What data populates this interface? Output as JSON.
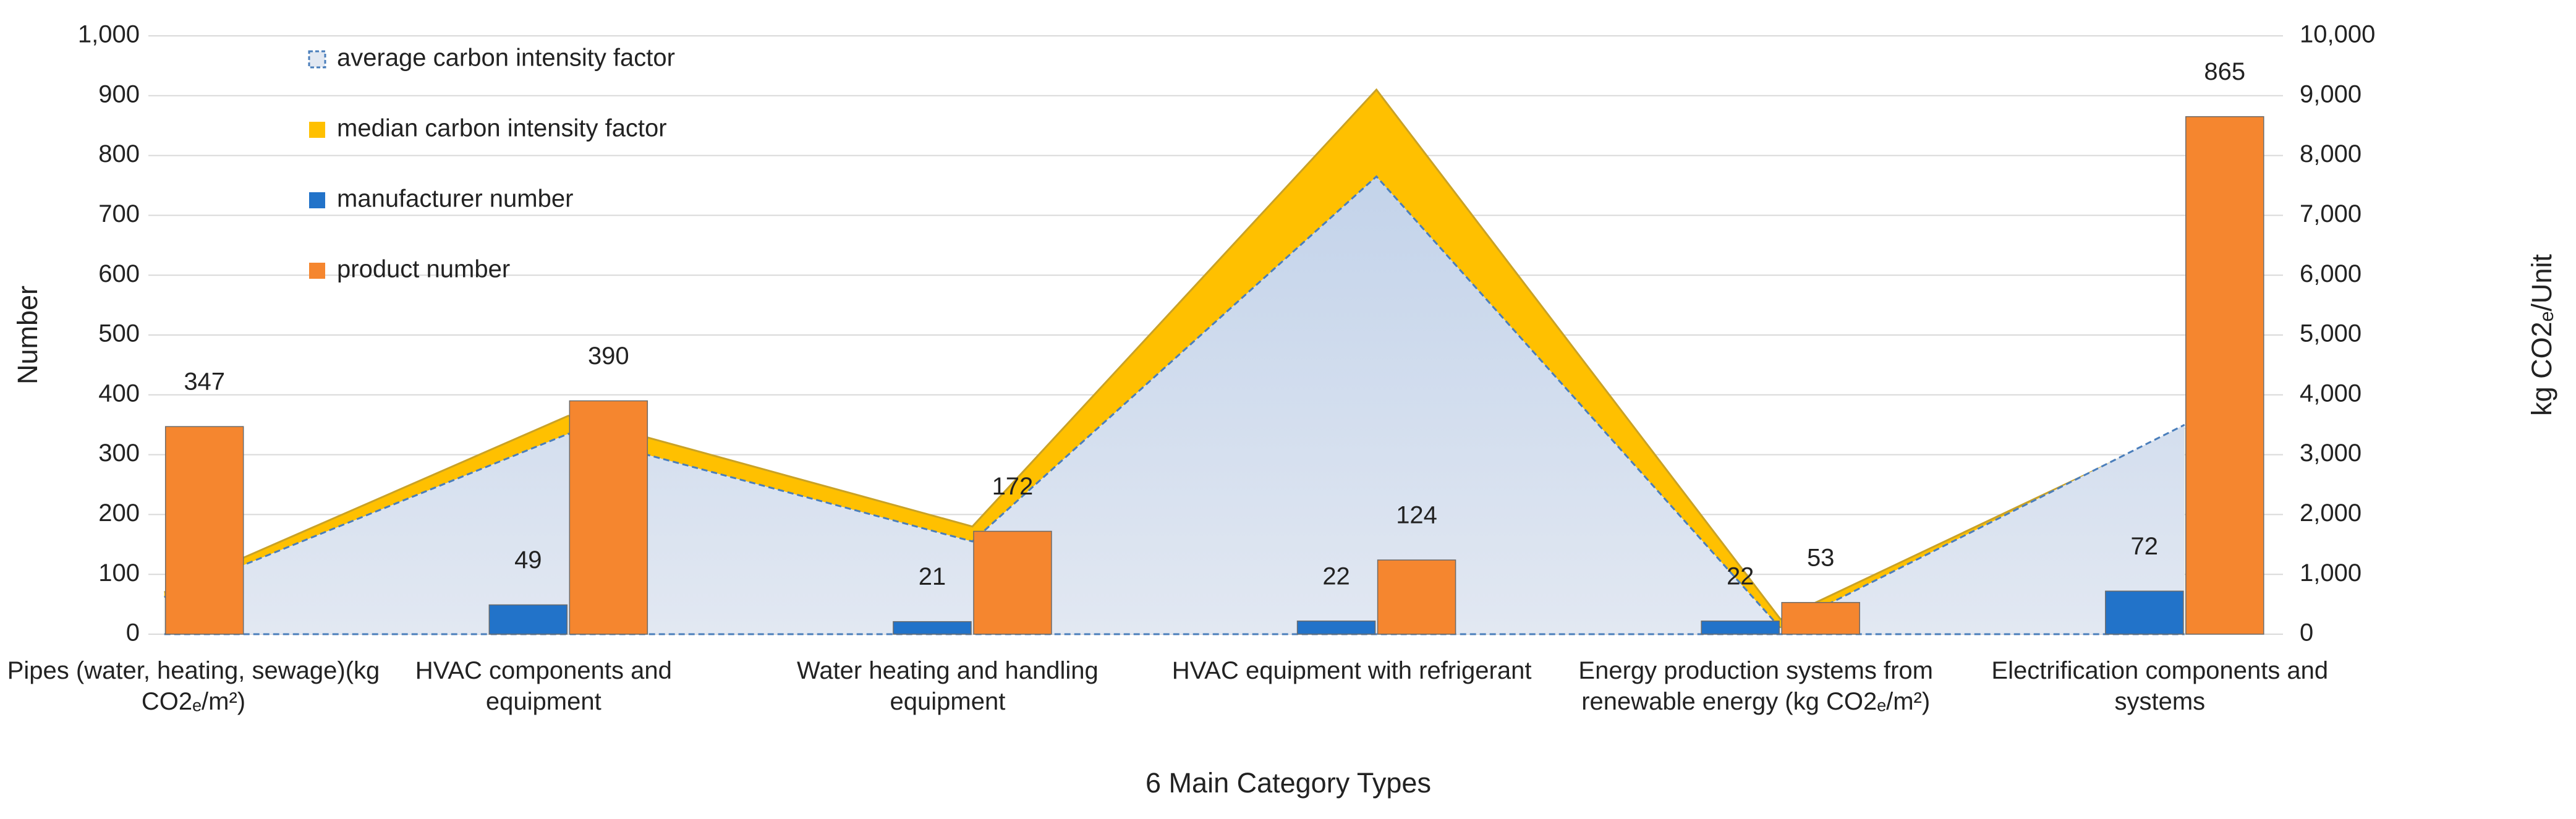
{
  "chart_data": {
    "type": "bar",
    "xlabel": "6 Main Category Types",
    "ylabel": "Number",
    "y2label": "kg CO2ₑ/Unit",
    "categories": [
      "Pipes (water, heating, sewage)(kg CO2ₑ/m²)",
      "HVAC components and equipment",
      "Water heating and handling equipment",
      "HVAC equipment with refrigerant",
      "Energy production systems from renewable energy (kg CO2ₑ/m²)",
      "Electrification components and systems"
    ],
    "series": [
      {
        "name": "average carbon intensity factor",
        "type": "area",
        "axis": "y2",
        "color": "#4a7ebb",
        "values": [
          620,
          3350,
          1550,
          7650,
          100,
          3500
        ]
      },
      {
        "name": "median carbon intensity factor",
        "type": "area",
        "axis": "y2",
        "color": "#ffc000",
        "values": [
          700,
          3650,
          1800,
          9100,
          250,
          3450
        ]
      },
      {
        "name": "manufacturer number",
        "type": "bar",
        "color": "#2273c9",
        "values": [
          null,
          49,
          21,
          22,
          22,
          72
        ]
      },
      {
        "name": "product number",
        "type": "bar",
        "color": "#f5862f",
        "values": [
          347,
          390,
          172,
          124,
          53,
          865
        ]
      }
    ],
    "ylim": [
      0,
      1000
    ],
    "yticks": [
      0,
      100,
      200,
      300,
      400,
      500,
      600,
      700,
      800,
      900,
      {
        "value": 1000,
        "label": "1,000"
      }
    ],
    "y2lim": [
      0,
      10000
    ],
    "y2ticks": [
      0,
      {
        "value": 1000,
        "label": "1,000"
      },
      {
        "value": 2000,
        "label": "2,000"
      },
      {
        "value": 3000,
        "label": "3,000"
      },
      {
        "value": 4000,
        "label": "4,000"
      },
      {
        "value": 5000,
        "label": "5,000"
      },
      {
        "value": 6000,
        "label": "6,000"
      },
      {
        "value": 7000,
        "label": "7,000"
      },
      {
        "value": 8000,
        "label": "8,000"
      },
      {
        "value": 9000,
        "label": "9,000"
      },
      {
        "value": 10000,
        "label": "10,000"
      }
    ],
    "grid": true,
    "legend": "top-left"
  }
}
